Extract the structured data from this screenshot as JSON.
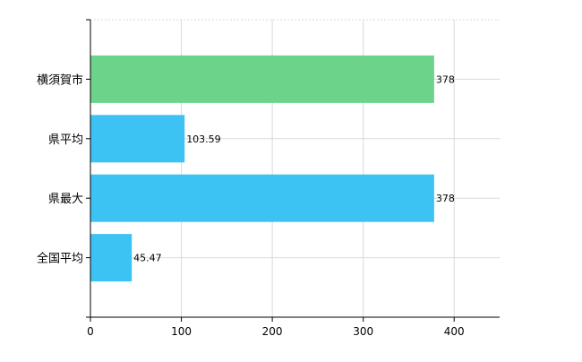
{
  "chart_data": {
    "type": "bar",
    "orientation": "horizontal",
    "categories": [
      "横須賀市",
      "県平均",
      "県最大",
      "全国平均"
    ],
    "values": [
      378,
      103.59,
      378,
      45.47
    ],
    "value_labels": [
      "378",
      "103.59",
      "378",
      "45.47"
    ],
    "xlim": [
      0,
      450
    ],
    "x_ticks": [
      0,
      100,
      200,
      300,
      400
    ],
    "x_tick_labels": [
      "0",
      "100",
      "200",
      "300",
      "400"
    ],
    "grid": true,
    "legend": "none",
    "colors": {
      "highlight": "#6CD38A",
      "default": "#3CC3F4",
      "grid": "#D9D9D9",
      "axis": "#000000",
      "label": "#000000"
    },
    "bar_colors": [
      "highlight",
      "default",
      "default",
      "default"
    ]
  }
}
